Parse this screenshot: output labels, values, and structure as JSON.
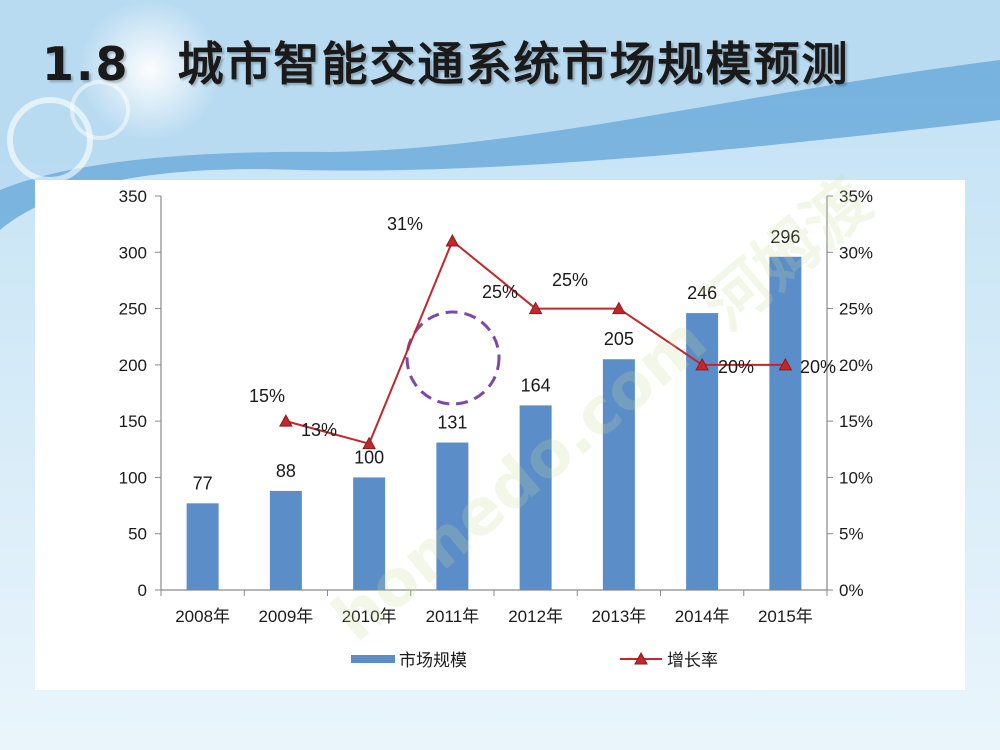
{
  "slide": {
    "title": "1.8　城市智能交通系统市场规模预测",
    "watermark_text": "homedo.com 河姆渡"
  },
  "chart_data": {
    "type": "bar",
    "categories": [
      "2008年",
      "2009年",
      "2010年",
      "2011年",
      "2012年",
      "2013年",
      "2014年",
      "2015年"
    ],
    "series": [
      {
        "name": "市场规模",
        "type": "bar",
        "axis": "left",
        "color": "#5b8ec9",
        "values": [
          77,
          88,
          100,
          131,
          164,
          205,
          246,
          296
        ],
        "labels": [
          "77",
          "88",
          "100",
          "131",
          "164",
          "205",
          "246",
          "296"
        ]
      },
      {
        "name": "增长率",
        "type": "line",
        "axis": "right",
        "color": "#c0282d",
        "marker": "triangle",
        "values": [
          null,
          15,
          13,
          31,
          25,
          25,
          20,
          20
        ],
        "labels": [
          "",
          "15%",
          "13%",
          "31%",
          "25%",
          "25%",
          "20%",
          "20%"
        ]
      }
    ],
    "y_left": {
      "min": 0,
      "max": 350,
      "ticks": [
        "0",
        "50",
        "100",
        "150",
        "200",
        "250",
        "300",
        "350"
      ]
    },
    "y_right": {
      "min": 0,
      "max": 35,
      "ticks": [
        "0%",
        "5%",
        "10%",
        "15%",
        "20%",
        "25%",
        "30%",
        "35%"
      ]
    },
    "grid": false,
    "legend_position": "bottom",
    "annotation": "dashed purple circle between 2011 and the growth line"
  }
}
